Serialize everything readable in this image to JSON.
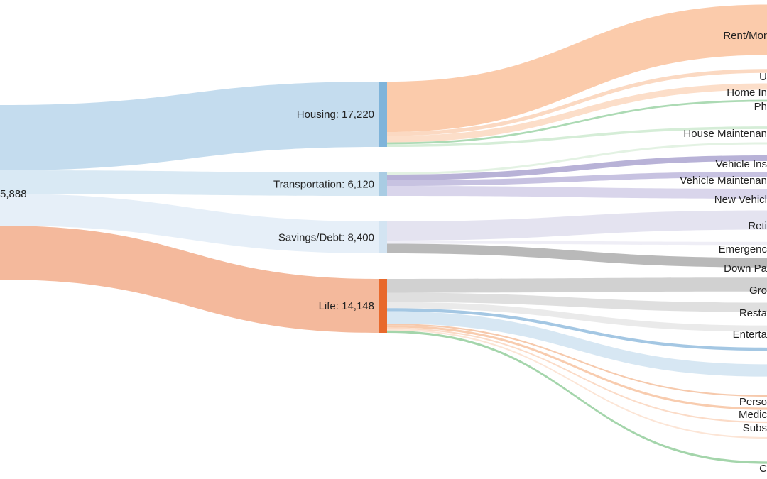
{
  "chart_data": {
    "type": "sankey",
    "source_label": "5,888",
    "flows": [
      {
        "category": "Housing",
        "value_label": "Housing: 17,220",
        "value": 17220,
        "color": "#7fb4da",
        "link_color": "#c4dcee"
      },
      {
        "category": "Transportation",
        "value_label": "Transportation: 6,120",
        "value": 6120,
        "color": "#a9cce3",
        "link_color": "#d9e9f4"
      },
      {
        "category": "Savings/Debt",
        "value_label": "Savings/Debt: 8,400",
        "value": 8400,
        "color": "#d3e4f2",
        "link_color": "#e6eff8"
      },
      {
        "category": "Life",
        "value_label": "Life: 14,148",
        "value": 14148,
        "color": "#e8692c",
        "link_color": "#f4b99c"
      }
    ],
    "targets": [
      {
        "source": "Housing",
        "label": "Rent/Mor",
        "color": "#fbc8a6"
      },
      {
        "source": "Housing",
        "label": "U",
        "color": "#fbd7bf"
      },
      {
        "source": "Housing",
        "label": "Home In",
        "color": "#fcdcc6"
      },
      {
        "source": "Housing",
        "label": "Ph",
        "color": "#a8d8b0"
      },
      {
        "source": "Housing",
        "label": "House Maintenan",
        "color": "#d3ecd5"
      },
      {
        "source": "Transportation",
        "label": "",
        "color": "#e2f1e2"
      },
      {
        "source": "Transportation",
        "label": "Vehicle Ins",
        "color": "#b4aed5"
      },
      {
        "source": "Transportation",
        "label": "Vehicle Maintenan",
        "color": "#c4bfdf"
      },
      {
        "source": "Transportation",
        "label": "New Vehicl",
        "color": "#d7d3ea"
      },
      {
        "source": "Savings/Debt",
        "label": "Reti",
        "color": "#e3e1ef"
      },
      {
        "source": "Savings/Debt",
        "label": "Emergenc",
        "color": "#eeedf5"
      },
      {
        "source": "Savings/Debt",
        "label": "Down Pa",
        "color": "#b5b5b5"
      },
      {
        "source": "Life",
        "label": "Gro",
        "color": "#cfcfcf"
      },
      {
        "source": "Life",
        "label": "Resta",
        "color": "#dddddd"
      },
      {
        "source": "Life",
        "label": "Enterta",
        "color": "#e9e9e9"
      },
      {
        "source": "Life",
        "label": "",
        "color": "#9fc4e2"
      },
      {
        "source": "Life",
        "label": "",
        "color": "#d5e6f2"
      },
      {
        "source": "Life",
        "label": "Perso",
        "color": "#f5c6a8"
      },
      {
        "source": "Life",
        "label": "Medic",
        "color": "#f8c9ab"
      },
      {
        "source": "Life",
        "label": "Subs",
        "color": "#fbd9c4"
      },
      {
        "source": "Life",
        "label": "",
        "color": "#fce4d4"
      },
      {
        "source": "Life",
        "label": "C",
        "color": "#9fd3a6"
      }
    ]
  }
}
